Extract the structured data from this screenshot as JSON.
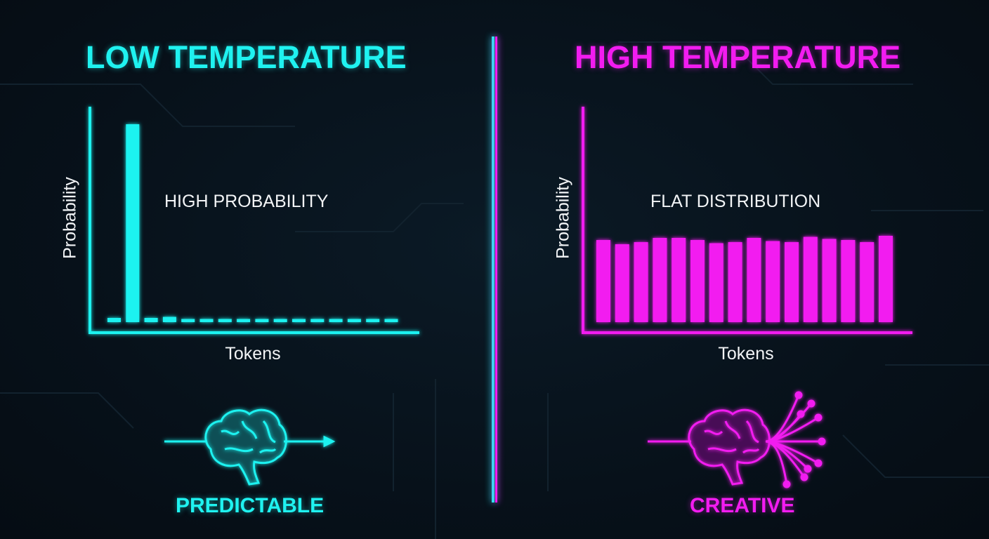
{
  "colors": {
    "low": "#1ff2f0",
    "high": "#f21cf0",
    "background": "#07111a"
  },
  "left": {
    "title": "LOW TEMPERATURE",
    "annotation": "HIGH PROBABILITY",
    "outcome": "PREDICTABLE",
    "icon": "brain-single-arrow-icon"
  },
  "right": {
    "title": "HIGH TEMPERATURE",
    "annotation": "FLAT DISTRIBUTION",
    "outcome": "CREATIVE",
    "icon": "brain-branching-arrows-icon"
  },
  "chart_data": [
    {
      "type": "bar",
      "title": "LOW TEMPERATURE",
      "xlabel": "Tokens",
      "ylabel": "Probability",
      "annotation": "HIGH PROBABILITY",
      "ylim": [
        0,
        1
      ],
      "grid": false,
      "values": [
        0.02,
        0.94,
        0.02,
        0.025,
        0.015,
        0.015,
        0.015,
        0.015,
        0.015,
        0.015,
        0.015,
        0.015,
        0.015,
        0.015,
        0.015,
        0.015
      ]
    },
    {
      "type": "bar",
      "title": "HIGH TEMPERATURE",
      "xlabel": "Tokens",
      "ylabel": "Probability",
      "annotation": "FLAT DISTRIBUTION",
      "ylim": [
        0,
        1
      ],
      "grid": false,
      "values": [
        0.39,
        0.37,
        0.38,
        0.4,
        0.4,
        0.39,
        0.375,
        0.38,
        0.4,
        0.385,
        0.38,
        0.405,
        0.395,
        0.39,
        0.38,
        0.41
      ]
    }
  ]
}
